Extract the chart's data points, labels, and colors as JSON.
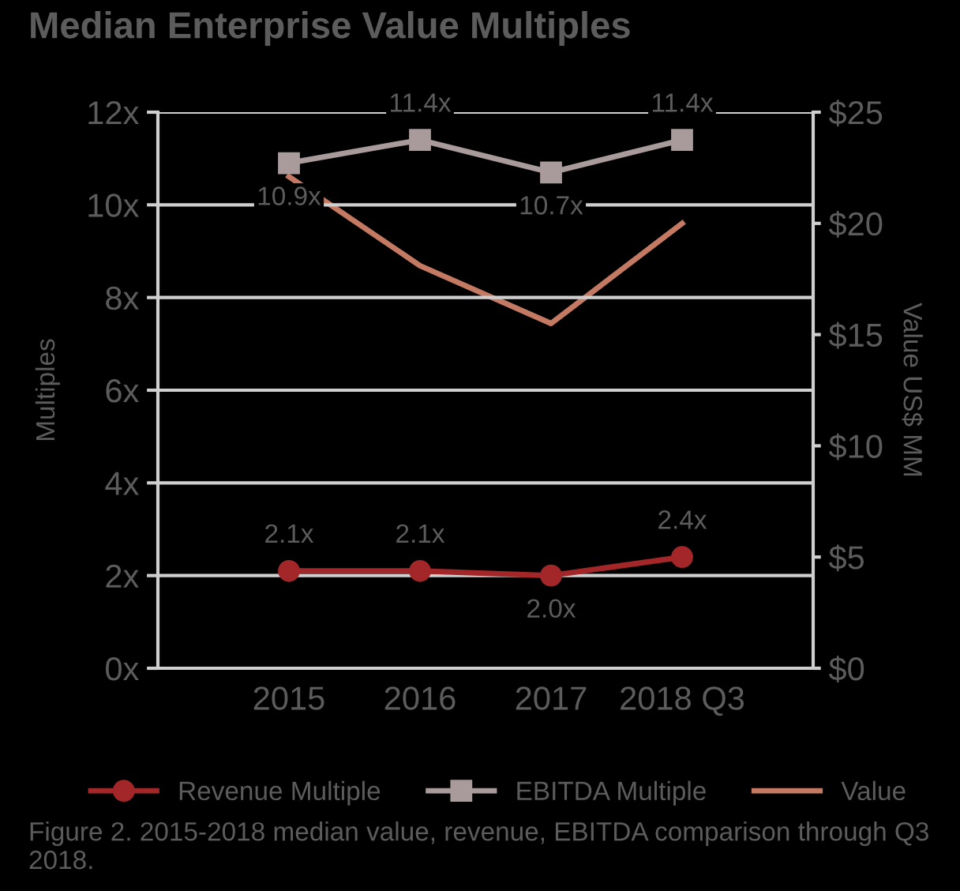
{
  "chart_data": {
    "type": "line",
    "title": "Median Enterprise Value Multiples",
    "categories": [
      "2015",
      "2016",
      "2017",
      "2018 Q3"
    ],
    "ylabel": "Multiples",
    "y2label": "Value US$ MM",
    "series": [
      {
        "name": "Revenue Multiple",
        "color": "#a32628",
        "marker": "circle",
        "values": [
          2.1,
          2.1,
          2.0,
          2.4
        ],
        "value_labels": [
          "2.1x",
          "2.1x",
          "2.0x",
          "2.4x"
        ]
      },
      {
        "name": "EBITDA Multiple",
        "color": "#a99a9c",
        "marker": "square",
        "values": [
          10.9,
          11.4,
          10.7,
          11.4
        ],
        "value_labels": [
          "10.9x",
          "11.4x",
          "10.7x",
          "11.4x"
        ]
      },
      {
        "name": "Value",
        "color": "#c47a62",
        "marker": "none",
        "axis": "y2",
        "values": [
          22.1,
          18.1,
          15.5,
          20.0
        ]
      }
    ],
    "ylim": [
      0,
      12
    ],
    "yticks": [
      {
        "value": 0,
        "label": "0x"
      },
      {
        "value": 2,
        "label": "2x"
      },
      {
        "value": 4,
        "label": "4x"
      },
      {
        "value": 6,
        "label": "6x"
      },
      {
        "value": 8,
        "label": "8x"
      },
      {
        "value": 10,
        "label": "10x"
      },
      {
        "value": 12,
        "label": "12x"
      }
    ],
    "y2lim": [
      0,
      25
    ],
    "y2ticks": [
      {
        "value": 0,
        "label": "$0"
      },
      {
        "value": 5,
        "label": "$5"
      },
      {
        "value": 10,
        "label": "$10"
      },
      {
        "value": 15,
        "label": "$15"
      },
      {
        "value": 20,
        "label": "$20"
      },
      {
        "value": 25,
        "label": "$25"
      }
    ],
    "grid": "y",
    "legend": "bottom",
    "line_style": "solid",
    "annotations": [
      "Figure 2. 2015-2018 median value, revenue, EBITDA comparison through Q3 2018."
    ]
  }
}
